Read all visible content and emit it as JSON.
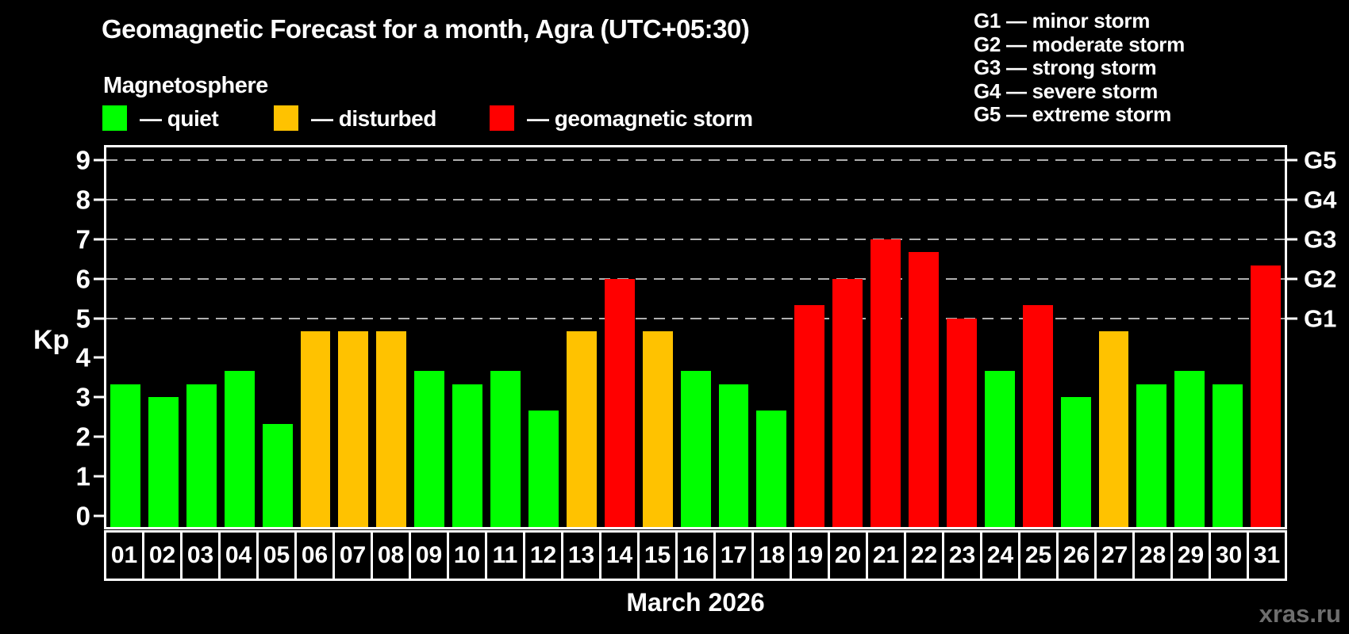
{
  "header": {
    "title": "Geomagnetic Forecast for a month, Agra (UTC+05:30)",
    "subtitle": "Magnetosphere"
  },
  "legend": {
    "items": [
      {
        "id": "quiet",
        "label": "— quiet",
        "color": "#00ff00"
      },
      {
        "id": "disturbed",
        "label": "— disturbed",
        "color": "#ffc200"
      },
      {
        "id": "storm",
        "label": "— geomagnetic storm",
        "color": "#ff0000"
      }
    ]
  },
  "storm_scale_legend": {
    "lines": [
      "G1 — minor storm",
      "G2 — moderate storm",
      "G3 — strong storm",
      "G4 — severe storm",
      "G5 — extreme storm"
    ]
  },
  "chart_data": {
    "type": "bar",
    "title": "Geomagnetic Forecast for a month, Agra (UTC+05:30)",
    "xlabel": "March 2026",
    "ylabel": "Kp",
    "ylim": [
      0,
      9
    ],
    "grid": "horizontal dashed lines at Kp 5-9 only",
    "legend_position": "top",
    "y_ticks": [
      0,
      1,
      2,
      3,
      4,
      5,
      6,
      7,
      8,
      9
    ],
    "gridline_levels": [
      5,
      6,
      7,
      8,
      9
    ],
    "right_axis_ticks": [
      {
        "kp": 5,
        "label": "G1"
      },
      {
        "kp": 6,
        "label": "G2"
      },
      {
        "kp": 7,
        "label": "G3"
      },
      {
        "kp": 8,
        "label": "G4"
      },
      {
        "kp": 9,
        "label": "G5"
      }
    ],
    "categories": [
      "01",
      "02",
      "03",
      "04",
      "05",
      "06",
      "07",
      "08",
      "09",
      "10",
      "11",
      "12",
      "13",
      "14",
      "15",
      "16",
      "17",
      "18",
      "19",
      "20",
      "21",
      "22",
      "23",
      "24",
      "25",
      "26",
      "27",
      "28",
      "29",
      "30",
      "31"
    ],
    "values": [
      3.33,
      3.0,
      3.33,
      3.67,
      2.33,
      4.67,
      4.67,
      4.67,
      3.67,
      3.33,
      3.67,
      2.67,
      4.67,
      6.0,
      4.67,
      3.67,
      3.33,
      2.67,
      5.33,
      6.0,
      7.0,
      6.67,
      5.0,
      3.67,
      5.33,
      3.0,
      4.67,
      3.33,
      3.67,
      3.33,
      6.33
    ],
    "statuses": [
      "quiet",
      "quiet",
      "quiet",
      "quiet",
      "quiet",
      "disturbed",
      "disturbed",
      "disturbed",
      "quiet",
      "quiet",
      "quiet",
      "quiet",
      "disturbed",
      "storm",
      "disturbed",
      "quiet",
      "quiet",
      "quiet",
      "storm",
      "storm",
      "storm",
      "storm",
      "storm",
      "quiet",
      "storm",
      "quiet",
      "disturbed",
      "quiet",
      "quiet",
      "quiet",
      "storm"
    ]
  },
  "footer": {
    "x_axis_title": "March 2026",
    "watermark": "xras.ru"
  },
  "colors": {
    "background": "#000000",
    "quiet": "#00ff00",
    "disturbed": "#ffc200",
    "storm": "#ff0000",
    "grid": "#b0b0b0",
    "axis": "#ffffff",
    "watermark": "#6e6e6e"
  }
}
